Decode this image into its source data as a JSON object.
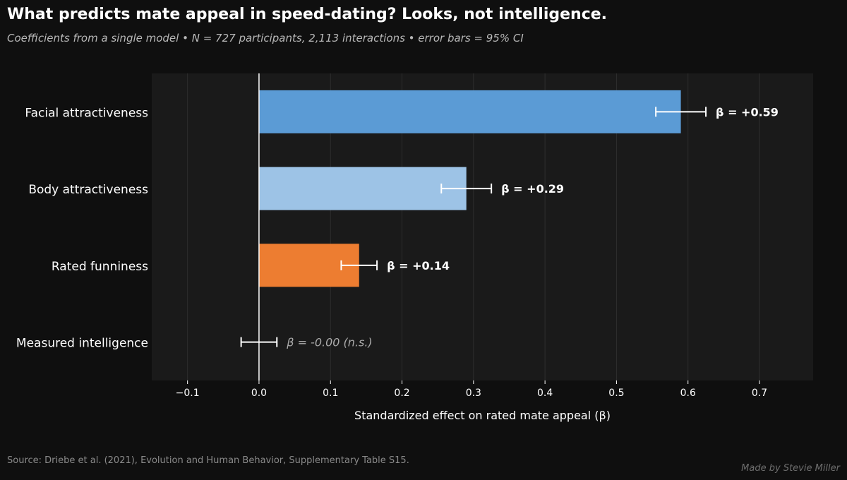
{
  "title": "What predicts mate appeal in speed-dating? Looks, not intelligence.",
  "subtitle": "Coefficients from a single model  •  N = 727 participants, 2,113 interactions  •  error bars = 95% CI",
  "source": "Source: Driebe et al. (2021), Evolution and Human Behavior, Supplementary Table S15.",
  "credit": "Made by Stevie Miller",
  "chart_data": {
    "type": "bar",
    "orientation": "horizontal",
    "xlabel": "Standardized effect on rated mate appeal (β)",
    "ylabel": "",
    "xlim": [
      -0.15,
      0.775
    ],
    "xticks": [
      -0.1,
      0.0,
      0.1,
      0.2,
      0.3,
      0.4,
      0.5,
      0.6,
      0.7
    ],
    "xtick_labels": [
      "−0.1",
      "0.0",
      "0.1",
      "0.2",
      "0.3",
      "0.4",
      "0.5",
      "0.6",
      "0.7"
    ],
    "grid": "vertical",
    "categories": [
      "Facial attractiveness",
      "Body attractiveness",
      "Rated funniness",
      "Measured intelligence"
    ],
    "values": [
      0.59,
      0.29,
      0.14,
      0.0
    ],
    "ci_low": [
      0.555,
      0.255,
      0.115,
      -0.025
    ],
    "ci_high": [
      0.625,
      0.325,
      0.165,
      0.025
    ],
    "value_labels": [
      "β = +0.59",
      "β = +0.29",
      "β = +0.14",
      "β = -0.00  (n.s.)"
    ],
    "significant": [
      true,
      true,
      true,
      false
    ],
    "colors": [
      "#5b9bd5",
      "#9dc3e6",
      "#ed7d31",
      "#888888"
    ]
  }
}
